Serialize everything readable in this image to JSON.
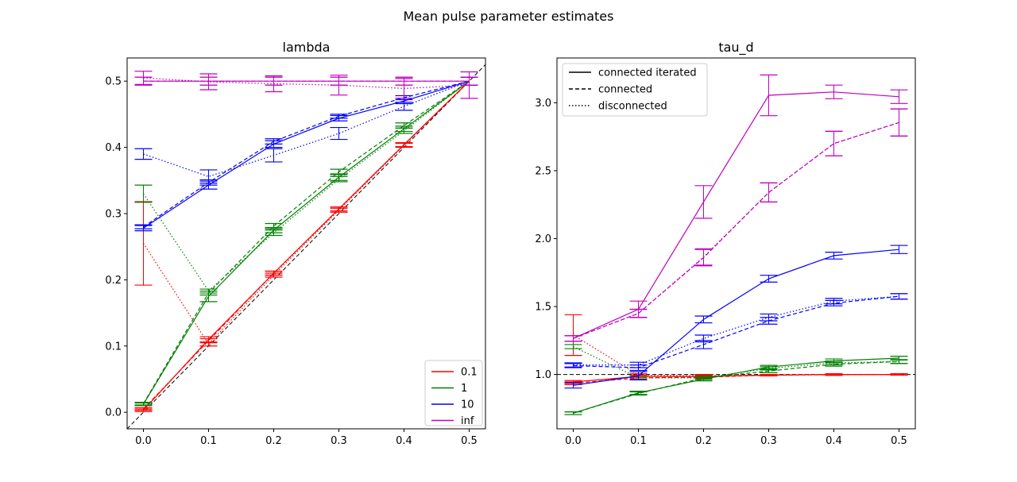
{
  "figure": {
    "suptitle": "Mean pulse parameter estimates"
  },
  "chart_data": [
    {
      "type": "line",
      "title": "lambda",
      "x": [
        0.0,
        0.1,
        0.2,
        0.3,
        0.4,
        0.5
      ],
      "xlim": [
        -0.025,
        0.525
      ],
      "ylim": [
        -0.025,
        0.535
      ],
      "xticks": [
        "0.0",
        "0.1",
        "0.2",
        "0.3",
        "0.4",
        "0.5"
      ],
      "yticks": [
        "0.0",
        "0.1",
        "0.2",
        "0.3",
        "0.4",
        "0.5"
      ],
      "reference_line": "identity",
      "legend": {
        "placement": "lower-right",
        "entries": [
          "0.1",
          "1",
          "10",
          "inf"
        ]
      },
      "series": [
        {
          "name": "0.1",
          "color": "#ff0000",
          "style": "solid",
          "y": [
            0.003,
            0.11,
            0.21,
            0.307,
            0.404,
            0.5
          ],
          "err": [
            0.002,
            0.004,
            0.003,
            0.003,
            0.003,
            0.006
          ]
        },
        {
          "name": "0.1",
          "color": "#ff0000",
          "style": "dashed",
          "y": [
            0.005,
            0.108,
            0.21,
            0.307,
            0.404,
            0.5
          ],
          "err": [
            0.002,
            0.003,
            0.003,
            0.003,
            0.003,
            0.006
          ]
        },
        {
          "name": "0.1",
          "color": "#ff0000",
          "style": "dotted",
          "y": [
            0.255,
            0.103,
            0.207,
            0.305,
            0.403,
            0.5
          ],
          "err": [
            0.063,
            0.003,
            0.003,
            0.003,
            0.003,
            0.006
          ]
        },
        {
          "name": "1",
          "color": "#008000",
          "style": "solid",
          "y": [
            0.012,
            0.175,
            0.275,
            0.355,
            0.428,
            0.5
          ],
          "err": [
            0.002,
            0.008,
            0.004,
            0.005,
            0.004,
            0.006
          ]
        },
        {
          "name": "1",
          "color": "#008000",
          "style": "dashed",
          "y": [
            0.013,
            0.18,
            0.281,
            0.363,
            0.433,
            0.5
          ],
          "err": [
            0.002,
            0.003,
            0.004,
            0.004,
            0.004,
            0.006
          ]
        },
        {
          "name": "1",
          "color": "#008000",
          "style": "dotted",
          "y": [
            0.33,
            0.183,
            0.271,
            0.352,
            0.425,
            0.5
          ],
          "err": [
            0.013,
            0.003,
            0.004,
            0.004,
            0.004,
            0.006
          ]
        },
        {
          "name": "10",
          "color": "#0000ff",
          "style": "solid",
          "y": [
            0.278,
            0.343,
            0.405,
            0.444,
            0.47,
            0.5
          ],
          "err": [
            0.004,
            0.006,
            0.005,
            0.004,
            0.004,
            0.006
          ]
        },
        {
          "name": "10",
          "color": "#0000ff",
          "style": "dashed",
          "y": [
            0.28,
            0.347,
            0.409,
            0.447,
            0.475,
            0.5
          ],
          "err": [
            0.003,
            0.004,
            0.004,
            0.003,
            0.003,
            0.006
          ]
        },
        {
          "name": "10",
          "color": "#0000ff",
          "style": "dotted",
          "y": [
            0.39,
            0.356,
            0.388,
            0.421,
            0.462,
            0.5
          ],
          "err": [
            0.008,
            0.01,
            0.01,
            0.009,
            0.006,
            0.006
          ]
        },
        {
          "name": "inf",
          "color": "#bf00bf",
          "style": "solid",
          "y": [
            0.5,
            0.5,
            0.5,
            0.5,
            0.5,
            0.5
          ],
          "err": [
            0.006,
            0.006,
            0.006,
            0.006,
            0.006,
            0.006
          ]
        },
        {
          "name": "inf",
          "color": "#bf00bf",
          "style": "dashed",
          "y": [
            0.5,
            0.5,
            0.5,
            0.5,
            0.5,
            0.5
          ],
          "err": [
            0.006,
            0.006,
            0.006,
            0.006,
            0.006,
            0.006
          ]
        },
        {
          "name": "inf",
          "color": "#bf00bf",
          "style": "dotted",
          "y": [
            0.505,
            0.499,
            0.496,
            0.494,
            0.489,
            0.494
          ],
          "err": [
            0.01,
            0.012,
            0.012,
            0.015,
            0.015,
            0.02
          ]
        }
      ]
    },
    {
      "type": "line",
      "title": "tau_d",
      "x": [
        0.0,
        0.1,
        0.2,
        0.3,
        0.4,
        0.5
      ],
      "xlim": [
        -0.025,
        0.525
      ],
      "ylim": [
        0.6,
        3.33
      ],
      "xticks": [
        "0.0",
        "0.1",
        "0.2",
        "0.3",
        "0.4",
        "0.5"
      ],
      "yticks": [
        "1.0",
        "1.5",
        "2.0",
        "2.5",
        "3.0"
      ],
      "reference_line": "y=1",
      "legend": {
        "placement": "top-left",
        "entries": [
          "connected iterated",
          "connected",
          "disconnected"
        ]
      },
      "series": [
        {
          "name": "0.1",
          "color": "#ff0000",
          "style": "solid",
          "y": [
            0.945,
            0.985,
            0.985,
            0.995,
            1.0,
            1.0
          ],
          "err": [
            0.01,
            0.01,
            0.01,
            0.005,
            0.005,
            0.005
          ]
        },
        {
          "name": "0.1",
          "color": "#ff0000",
          "style": "dashed",
          "y": [
            0.935,
            0.975,
            0.98,
            0.995,
            0.998,
            1.0
          ],
          "err": [
            0.01,
            0.01,
            0.01,
            0.005,
            0.005,
            0.005
          ]
        },
        {
          "name": "0.1",
          "color": "#ff0000",
          "style": "dotted",
          "y": [
            1.29,
            0.995,
            0.99,
            0.995,
            1.0,
            1.0
          ],
          "err": [
            0.15,
            0.01,
            0.01,
            0.005,
            0.005,
            0.005
          ]
        },
        {
          "name": "1",
          "color": "#008000",
          "style": "solid",
          "y": [
            0.715,
            0.865,
            0.965,
            1.055,
            1.1,
            1.12
          ],
          "err": [
            0.01,
            0.012,
            0.012,
            0.012,
            0.014,
            0.014
          ]
        },
        {
          "name": "1",
          "color": "#008000",
          "style": "dashed",
          "y": [
            0.715,
            0.86,
            0.975,
            1.025,
            1.075,
            1.095
          ],
          "err": [
            0.01,
            0.012,
            0.012,
            0.012,
            0.014,
            0.014
          ]
        },
        {
          "name": "1",
          "color": "#008000",
          "style": "dotted",
          "y": [
            1.205,
            0.975,
            0.975,
            1.045,
            1.085,
            1.095
          ],
          "err": [
            0.015,
            0.012,
            0.012,
            0.012,
            0.014,
            0.014
          ]
        },
        {
          "name": "10",
          "color": "#0000ff",
          "style": "solid",
          "y": [
            0.92,
            0.99,
            1.405,
            1.705,
            1.875,
            1.92
          ],
          "err": [
            0.02,
            0.03,
            0.025,
            0.025,
            0.025,
            0.03
          ]
        },
        {
          "name": "10",
          "color": "#0000ff",
          "style": "dashed",
          "y": [
            1.065,
            1.05,
            1.22,
            1.395,
            1.525,
            1.575
          ],
          "err": [
            0.015,
            0.02,
            0.03,
            0.025,
            0.02,
            0.02
          ]
        },
        {
          "name": "10",
          "color": "#0000ff",
          "style": "dotted",
          "y": [
            1.07,
            1.07,
            1.265,
            1.42,
            1.54,
            1.575
          ],
          "err": [
            0.015,
            0.02,
            0.025,
            0.025,
            0.02,
            0.02
          ]
        },
        {
          "name": "inf",
          "color": "#bf00bf",
          "style": "solid",
          "y": [
            1.265,
            1.48,
            2.27,
            3.055,
            3.08,
            3.045
          ],
          "err": [
            0.02,
            0.06,
            0.12,
            0.15,
            0.05,
            0.05
          ]
        },
        {
          "name": "inf",
          "color": "#bf00bf",
          "style": "dashed",
          "y": [
            1.265,
            1.45,
            1.86,
            2.34,
            2.7,
            2.855
          ],
          "err": [
            0.02,
            0.03,
            0.06,
            0.07,
            0.09,
            0.1
          ]
        },
        {
          "name": "inf",
          "color": "#bf00bf",
          "style": "dotted",
          "y": [
            1.265,
            1.45,
            1.865,
            2.34,
            2.7,
            2.855
          ],
          "err": [
            0.02,
            0.03,
            0.06,
            0.07,
            0.09,
            0.1
          ]
        }
      ]
    }
  ]
}
